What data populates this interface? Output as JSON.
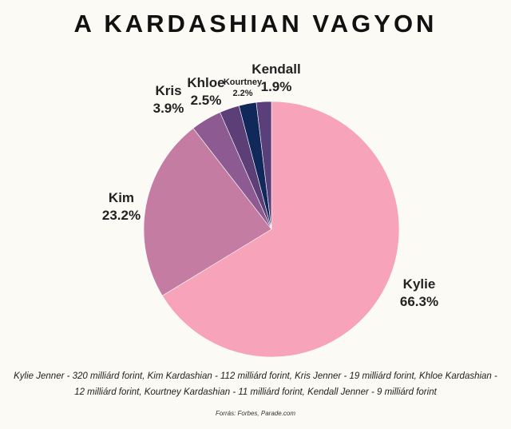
{
  "chart_data": {
    "type": "pie",
    "title": "A KARDASHIAN VAGYON",
    "start": "top, clockwise",
    "slices": [
      {
        "label": "Kylie",
        "value": 66.3,
        "display": "66.3%",
        "color": "#f7a3b9"
      },
      {
        "label": "Kim",
        "value": 23.2,
        "display": "23.2%",
        "color": "#c57ca3"
      },
      {
        "label": "Kris",
        "value": 3.9,
        "display": "3.9%",
        "color": "#8d5a91"
      },
      {
        "label": "Khloe",
        "value": 2.5,
        "display": "2.5%",
        "color": "#5d3f78"
      },
      {
        "label": "Kourtney",
        "value": 2.2,
        "display": "2.2%",
        "color": "#10285a"
      },
      {
        "label": "Kendall",
        "value": 1.9,
        "display": "1.9%",
        "color": "#5a3f7a"
      }
    ]
  },
  "note": "Kylie Jenner - 320 milliárd forint, Kim Kardashian - 112 milliárd forint, Kris Jenner - 19 milliárd forint, Khloe Kardashian - 12 milliárd forint, Kourtney Kardashian - 11 milliárd forint, Kendall Jenner - 9 milliárd forint",
  "source": "Forrás: Forbes, Parade.com"
}
